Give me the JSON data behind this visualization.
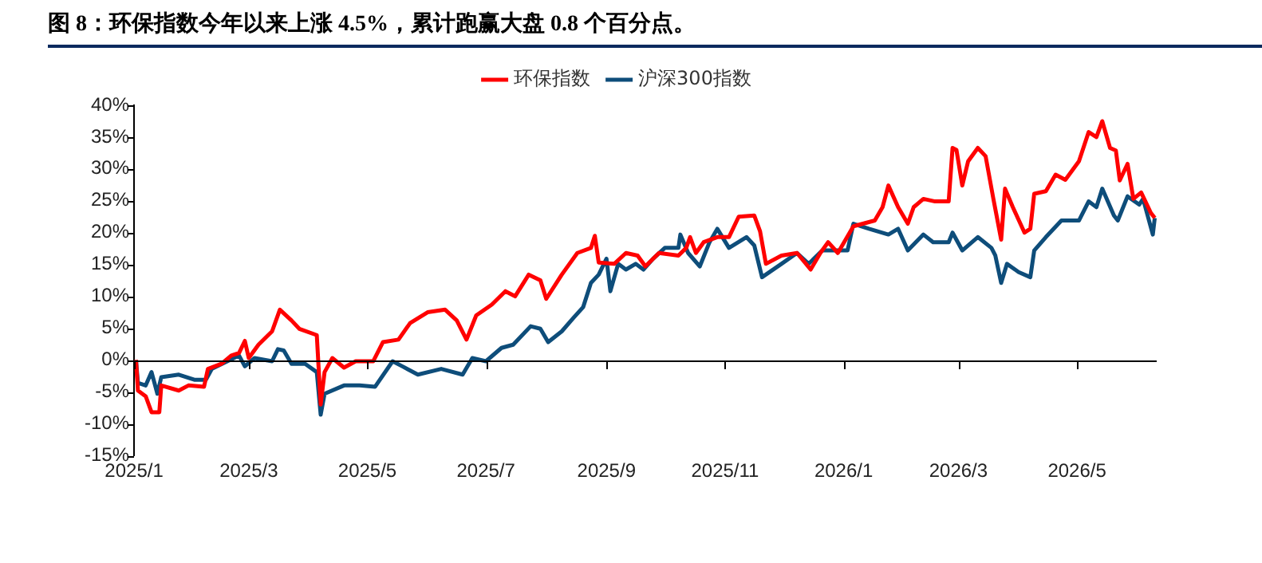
{
  "chart_data": {
    "type": "line",
    "title": "图 8：环保指数今年以来上涨 4.5%，累计跑赢大盘 0.8 个百分点。",
    "xlim": [
      "2025-01-01",
      "2026-06-11"
    ],
    "xticks": [
      {
        "value": "2025-01-01",
        "label": "2025/1"
      },
      {
        "value": "2025-03-01",
        "label": "2025/3"
      },
      {
        "value": "2025-05-01",
        "label": "2025/5"
      },
      {
        "value": "2025-07-01",
        "label": "2025/7"
      },
      {
        "value": "2025-09-01",
        "label": "2025/9"
      },
      {
        "value": "2025-11-01",
        "label": "2025/11"
      },
      {
        "value": "2026-01-01",
        "label": "2026/1"
      },
      {
        "value": "2026-03-01",
        "label": "2026/3"
      },
      {
        "value": "2026-05-01",
        "label": "2026/5"
      }
    ],
    "ylim": [
      -15,
      40
    ],
    "yticks": [
      {
        "value": -15,
        "label": "-15%"
      },
      {
        "value": -10,
        "label": "-10%"
      },
      {
        "value": -5,
        "label": "-5%"
      },
      {
        "value": 0,
        "label": "0%"
      },
      {
        "value": 5,
        "label": "5%"
      },
      {
        "value": 10,
        "label": "10%"
      },
      {
        "value": 15,
        "label": "15%"
      },
      {
        "value": 20,
        "label": "20%"
      },
      {
        "value": 25,
        "label": "25%"
      },
      {
        "value": 30,
        "label": "30%"
      },
      {
        "value": 35,
        "label": "35%"
      },
      {
        "value": 40,
        "label": "40%"
      }
    ],
    "ref_lines": [
      {
        "axis": "y",
        "value": 0,
        "color": "#000000"
      }
    ],
    "grid": false,
    "legend": "top",
    "marker": "none",
    "line_style": "solid",
    "series": [
      {
        "name": "环保指数",
        "color": "#ff0000",
        "x": [
          "2025-01-02",
          "2025-01-03",
          "2025-01-07",
          "2025-01-10",
          "2025-01-14",
          "2025-01-15",
          "2025-01-24",
          "2025-01-29",
          "2025-02-06",
          "2025-02-08",
          "2025-02-15",
          "2025-02-20",
          "2025-02-24",
          "2025-02-27",
          "2025-03-01",
          "2025-03-06",
          "2025-03-13",
          "2025-03-17",
          "2025-03-23",
          "2025-03-27",
          "2025-04-05",
          "2025-04-07",
          "2025-04-09",
          "2025-04-13",
          "2025-04-19",
          "2025-04-25",
          "2025-05-04",
          "2025-05-09",
          "2025-05-17",
          "2025-05-23",
          "2025-06-01",
          "2025-06-10",
          "2025-06-16",
          "2025-06-21",
          "2025-06-26",
          "2025-07-04",
          "2025-07-11",
          "2025-07-16",
          "2025-07-23",
          "2025-07-29",
          "2025-08-01",
          "2025-08-09",
          "2025-08-17",
          "2025-08-24",
          "2025-08-26",
          "2025-08-28",
          "2025-09-05",
          "2025-09-11",
          "2025-09-17",
          "2025-09-21",
          "2025-09-28",
          "2025-10-08",
          "2025-10-12",
          "2025-10-14",
          "2025-10-17",
          "2025-10-21",
          "2025-10-28",
          "2025-11-03",
          "2025-11-08",
          "2025-11-16",
          "2025-11-19",
          "2025-11-22",
          "2025-11-30",
          "2025-12-08",
          "2025-12-15",
          "2025-12-20",
          "2025-12-24",
          "2025-12-29",
          "2026-01-06",
          "2026-01-17",
          "2026-01-21",
          "2026-01-24",
          "2026-01-29",
          "2026-02-03",
          "2026-02-06",
          "2026-02-11",
          "2026-02-17",
          "2026-02-24",
          "2026-02-26",
          "2026-02-28",
          "2026-03-03",
          "2026-03-06",
          "2026-03-11",
          "2026-03-15",
          "2026-03-19",
          "2026-03-23",
          "2026-03-25",
          "2026-03-29",
          "2026-04-04",
          "2026-04-07",
          "2026-04-09",
          "2026-04-15",
          "2026-04-20",
          "2026-04-25",
          "2026-05-02",
          "2026-05-07",
          "2026-05-11",
          "2026-05-14",
          "2026-05-18",
          "2026-05-21",
          "2026-05-23",
          "2026-05-27",
          "2026-05-30",
          "2026-06-03",
          "2026-06-08",
          "2026-06-10"
        ],
        "values": [
          0,
          -4.8,
          -5.7,
          -8.2,
          -8.2,
          -4,
          -4.8,
          -4,
          -4.2,
          -1.4,
          -0.6,
          0.7,
          1.1,
          3,
          0.3,
          2.4,
          4.5,
          7.9,
          6.2,
          4.9,
          3.9,
          -7,
          -1.9,
          0.3,
          -1.2,
          -0.2,
          -0.2,
          2.8,
          3.2,
          5.8,
          7.5,
          7.9,
          6.2,
          3.2,
          7,
          8.7,
          10.8,
          10,
          13.4,
          12.5,
          9.6,
          13.4,
          16.8,
          17.6,
          19.5,
          15.3,
          15.1,
          16.8,
          16.4,
          14.7,
          16.8,
          16.4,
          17.6,
          19.3,
          16.8,
          18.5,
          19.3,
          19.3,
          22.5,
          22.7,
          20.2,
          15.1,
          16.4,
          16.8,
          14.2,
          16.8,
          18.5,
          16.8,
          21,
          21.9,
          24,
          27.4,
          24,
          21.4,
          24,
          25.3,
          24.9,
          24.9,
          33.3,
          33,
          27.4,
          31.2,
          33.3,
          32,
          25.3,
          18.9,
          26.9,
          24,
          20,
          20.6,
          26.1,
          26.5,
          29.1,
          28.3,
          31.2,
          35.8,
          35,
          37.5,
          33.3,
          32.9,
          28.2,
          30.8,
          25.3,
          26.3,
          23.1,
          22.3
        ]
      },
      {
        "name": "沪深300指数",
        "color": "#0e4d7a",
        "x": [
          "2025-01-02",
          "2025-01-03",
          "2025-01-07",
          "2025-01-10",
          "2025-01-13",
          "2025-01-15",
          "2025-01-24",
          "2025-02-01",
          "2025-02-07",
          "2025-02-10",
          "2025-02-18",
          "2025-02-24",
          "2025-02-27",
          "2025-03-04",
          "2025-03-13",
          "2025-03-16",
          "2025-03-19",
          "2025-03-23",
          "2025-03-30",
          "2025-04-05",
          "2025-04-07",
          "2025-04-09",
          "2025-04-19",
          "2025-04-27",
          "2025-05-05",
          "2025-05-14",
          "2025-05-19",
          "2025-05-27",
          "2025-06-08",
          "2025-06-19",
          "2025-06-24",
          "2025-07-01",
          "2025-07-09",
          "2025-07-15",
          "2025-07-24",
          "2025-07-29",
          "2025-08-02",
          "2025-08-09",
          "2025-08-15",
          "2025-08-20",
          "2025-08-24",
          "2025-08-28",
          "2025-09-01",
          "2025-09-03",
          "2025-09-07",
          "2025-09-11",
          "2025-09-16",
          "2025-09-20",
          "2025-09-25",
          "2025-10-01",
          "2025-10-08",
          "2025-10-09",
          "2025-10-13",
          "2025-10-19",
          "2025-10-24",
          "2025-10-28",
          "2025-11-03",
          "2025-11-12",
          "2025-11-16",
          "2025-11-20",
          "2025-11-30",
          "2025-12-08",
          "2025-12-14",
          "2025-12-21",
          "2026-01-03",
          "2026-01-06",
          "2026-01-14",
          "2026-01-24",
          "2026-01-29",
          "2026-02-03",
          "2026-02-11",
          "2026-02-16",
          "2026-02-24",
          "2026-02-26",
          "2026-03-03",
          "2026-03-11",
          "2026-03-18",
          "2026-03-20",
          "2026-03-23",
          "2026-03-26",
          "2026-04-01",
          "2026-04-07",
          "2026-04-09",
          "2026-04-15",
          "2026-04-23",
          "2026-05-02",
          "2026-05-07",
          "2026-05-11",
          "2026-05-14",
          "2026-05-20",
          "2026-05-22",
          "2026-05-27",
          "2026-06-02",
          "2026-06-04",
          "2026-06-09",
          "2026-06-10"
        ],
        "values": [
          0,
          -3.6,
          -4,
          -1.9,
          -5.3,
          -2.7,
          -2.3,
          -3.1,
          -3.1,
          -1.4,
          -0.2,
          0.7,
          -1,
          0.3,
          -0.2,
          1.7,
          1.5,
          -0.6,
          -0.6,
          -1.9,
          -8.6,
          -5.3,
          -4,
          -4,
          -4.2,
          -0.2,
          -1,
          -2.3,
          -1.4,
          -2.3,
          0.3,
          -0.2,
          1.9,
          2.4,
          5.3,
          4.9,
          2.8,
          4.5,
          6.6,
          8.3,
          12.1,
          13.4,
          15.9,
          10.8,
          15.1,
          14.2,
          15.1,
          14.2,
          15.9,
          17.6,
          17.6,
          19.7,
          16.8,
          14.7,
          18.5,
          20.6,
          17.6,
          19.3,
          18,
          13,
          15.1,
          16.8,
          15.1,
          17.2,
          17.2,
          21.4,
          20.6,
          19.7,
          20.6,
          17.2,
          19.7,
          18.5,
          18.5,
          20,
          17.2,
          19.3,
          17.6,
          16.4,
          12.1,
          15.1,
          13.8,
          13,
          17.2,
          19.3,
          21.9,
          21.9,
          24.9,
          24,
          26.9,
          22.7,
          21.9,
          25.7,
          24.4,
          25.3,
          19.7,
          22.3
        ]
      }
    ]
  }
}
